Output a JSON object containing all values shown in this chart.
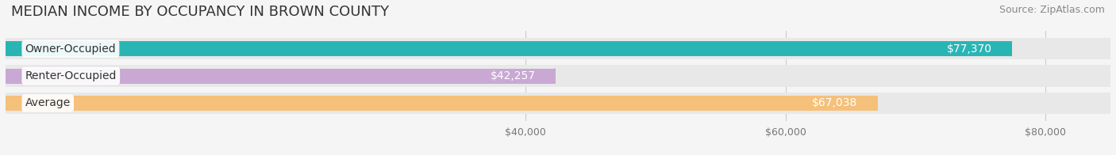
{
  "title": "MEDIAN INCOME BY OCCUPANCY IN BROWN COUNTY",
  "source": "Source: ZipAtlas.com",
  "categories": [
    "Owner-Occupied",
    "Renter-Occupied",
    "Average"
  ],
  "values": [
    77370,
    42257,
    67038
  ],
  "bar_colors": [
    "#2ab5b5",
    "#c9a8d4",
    "#f5c07a"
  ],
  "label_colors": [
    "#ffffff",
    "#555555",
    "#ffffff"
  ],
  "value_labels": [
    "$77,370",
    "$42,257",
    "$67,038"
  ],
  "xlim": [
    0,
    85000
  ],
  "xticks": [
    40000,
    60000,
    80000
  ],
  "xtick_labels": [
    "$40,000",
    "$60,000",
    "$80,000"
  ],
  "bar_height": 0.55,
  "background_color": "#f5f5f5",
  "bar_bg_color": "#e8e8e8",
  "title_fontsize": 13,
  "label_fontsize": 10,
  "value_fontsize": 10,
  "source_fontsize": 9
}
